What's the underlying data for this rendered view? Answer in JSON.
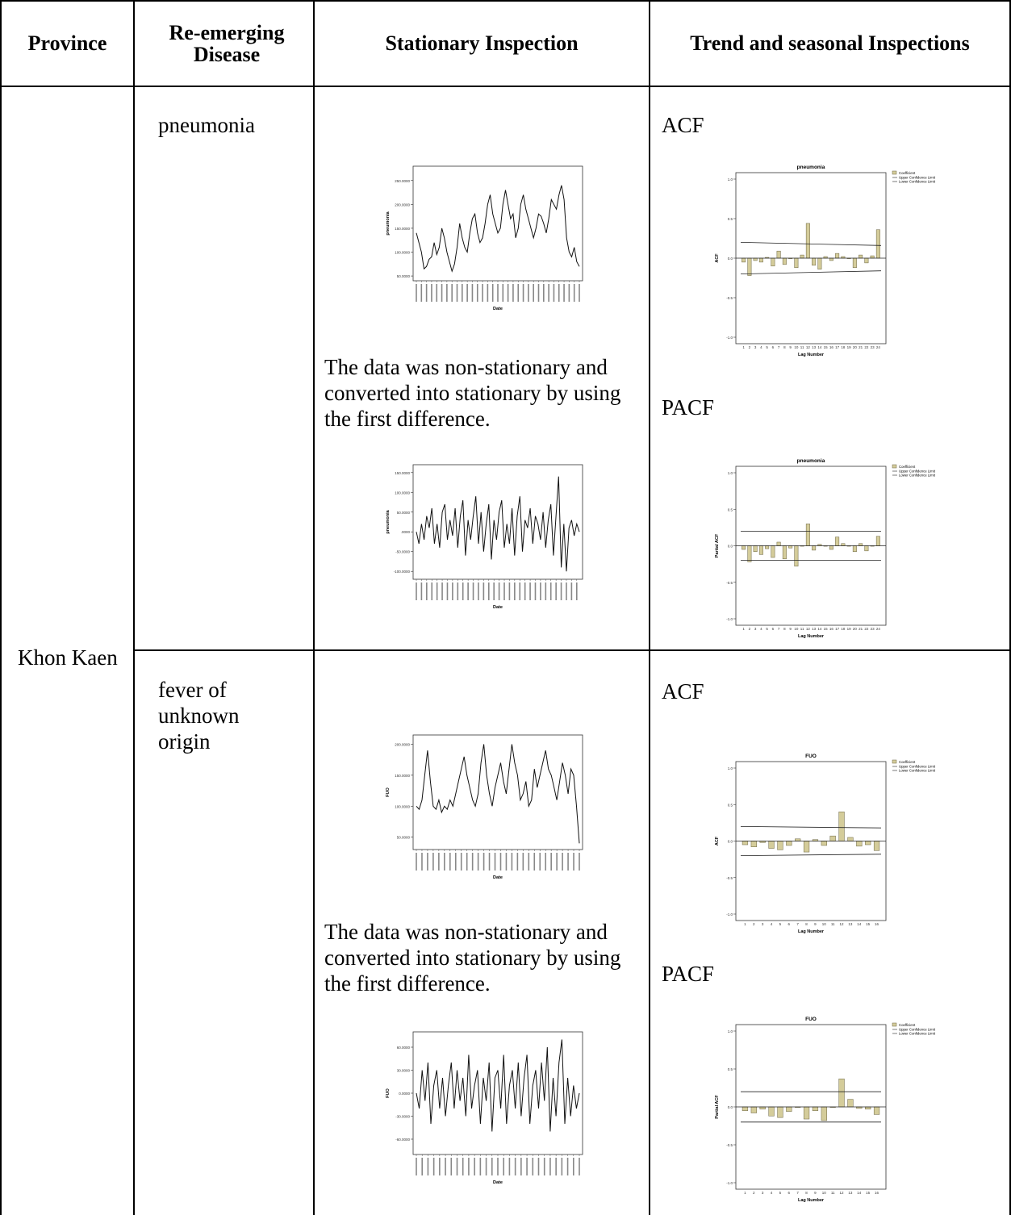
{
  "table": {
    "headers": {
      "province": "Province",
      "disease": "Re-emerging Disease",
      "stationary": "Stationary Inspection",
      "trend": "Trend and seasonal Inspections"
    },
    "province": "Khon Kaen",
    "rows": [
      {
        "disease": "pneumonia",
        "stationary_note": "The data was non-stationary and converted into stationary by using the first difference.",
        "acf_label": "ACF",
        "pacf_label": "PACF"
      },
      {
        "disease": "fever of unknown origin",
        "stationary_note": "The data was non-stationary and converted into stationary by using the first difference.",
        "acf_label": "ACF",
        "pacf_label": "PACF"
      }
    ]
  },
  "chart_data": [
    {
      "id": "pneumonia-series",
      "type": "line",
      "xlabel": "Date",
      "ylabel": "pneumonia",
      "yticks": [
        "250.0000",
        "200.0000",
        "150.0000",
        "100.0000",
        "50.0000"
      ],
      "ylim": [
        40,
        280
      ],
      "values": [
        140,
        120,
        100,
        65,
        70,
        85,
        90,
        120,
        95,
        110,
        150,
        130,
        100,
        80,
        60,
        75,
        110,
        160,
        130,
        110,
        100,
        140,
        170,
        180,
        140,
        120,
        130,
        160,
        200,
        220,
        180,
        160,
        140,
        150,
        200,
        230,
        200,
        170,
        180,
        130,
        150,
        200,
        220,
        190,
        170,
        150,
        130,
        150,
        180,
        175,
        160,
        140,
        170,
        210,
        200,
        190,
        220,
        240,
        210,
        130,
        100,
        90,
        110,
        80,
        70
      ]
    },
    {
      "id": "pneumonia-diff",
      "type": "line",
      "xlabel": "Date",
      "ylabel": "pneumonia",
      "yticks": [
        "150.0000",
        "100.0000",
        "50.0000",
        ".0000",
        "-50.0000",
        "-100.0000"
      ],
      "ylim": [
        -120,
        170
      ],
      "values": [
        0,
        -30,
        20,
        -20,
        40,
        10,
        60,
        -30,
        20,
        -40,
        50,
        70,
        -20,
        30,
        -10,
        60,
        -40,
        40,
        80,
        -60,
        30,
        -20,
        40,
        90,
        -30,
        50,
        -50,
        20,
        70,
        -70,
        30,
        -20,
        50,
        80,
        -40,
        20,
        -30,
        60,
        -60,
        40,
        90,
        -50,
        30,
        10,
        60,
        -30,
        40,
        20,
        -20,
        50,
        -40,
        30,
        70,
        -60,
        40,
        140,
        -90,
        20,
        -100,
        10,
        30,
        -10,
        20,
        0
      ]
    },
    {
      "id": "pneumonia-acf",
      "type": "bar",
      "title": "pneumonia",
      "xlabel": "Lag Number",
      "ylabel": "ACF",
      "legend": [
        "Coefficient",
        "Upper Confidence Limit",
        "Lower Confidence Limit"
      ],
      "yticks": [
        "1.0",
        "0.5",
        "0.0",
        "-0.5",
        "-1.0"
      ],
      "ylim": [
        -1,
        1
      ],
      "categories": [
        "1",
        "2",
        "3",
        "4",
        "5",
        "6",
        "7",
        "8",
        "9",
        "10",
        "11",
        "12",
        "13",
        "14",
        "15",
        "16",
        "17",
        "18",
        "19",
        "20",
        "21",
        "22",
        "23",
        "24"
      ],
      "values": [
        -0.05,
        -0.22,
        -0.03,
        -0.05,
        0.01,
        -0.1,
        0.09,
        -0.08,
        0.0,
        -0.12,
        0.04,
        0.44,
        -0.09,
        -0.14,
        0.02,
        -0.03,
        0.06,
        0.02,
        0.0,
        -0.12,
        0.04,
        -0.06,
        0.03,
        0.36
      ],
      "upper_limit": [
        0.2,
        0.16
      ],
      "lower_limit": [
        -0.2,
        -0.16
      ]
    },
    {
      "id": "pneumonia-pacf",
      "type": "bar",
      "title": "pneumonia",
      "xlabel": "Lag Number",
      "ylabel": "Partial ACF",
      "legend": [
        "Coefficient",
        "Upper Confidence Limit",
        "Lower Confidence Limit"
      ],
      "yticks": [
        "1.0",
        "0.5",
        "0.0",
        "-0.5",
        "-1.0"
      ],
      "ylim": [
        -1,
        1
      ],
      "categories": [
        "1",
        "2",
        "3",
        "4",
        "5",
        "6",
        "7",
        "8",
        "9",
        "10",
        "11",
        "12",
        "13",
        "14",
        "15",
        "16",
        "17",
        "18",
        "19",
        "20",
        "21",
        "22",
        "23",
        "24"
      ],
      "values": [
        -0.05,
        -0.22,
        -0.08,
        -0.12,
        -0.04,
        -0.16,
        0.05,
        -0.18,
        -0.03,
        -0.28,
        0.0,
        0.3,
        -0.06,
        0.02,
        0.0,
        -0.05,
        0.12,
        0.03,
        0.0,
        -0.08,
        0.03,
        -0.07,
        0.0,
        0.13
      ],
      "upper_limit": [
        0.2,
        0.2
      ],
      "lower_limit": [
        -0.2,
        -0.2
      ]
    },
    {
      "id": "fuo-series",
      "type": "line",
      "xlabel": "Date",
      "ylabel": "FUO",
      "yticks": [
        "200.0000",
        "150.0000",
        "100.0000",
        "50.0000"
      ],
      "ylim": [
        30,
        215
      ],
      "values": [
        100,
        95,
        110,
        150,
        190,
        140,
        100,
        95,
        110,
        90,
        100,
        95,
        110,
        100,
        120,
        140,
        160,
        180,
        150,
        130,
        110,
        100,
        120,
        170,
        200,
        150,
        120,
        100,
        130,
        150,
        170,
        140,
        120,
        160,
        200,
        170,
        150,
        110,
        120,
        140,
        100,
        110,
        160,
        130,
        150,
        170,
        190,
        160,
        150,
        130,
        110,
        140,
        170,
        150,
        120,
        160,
        150,
        100,
        40
      ]
    },
    {
      "id": "fuo-diff",
      "type": "line",
      "xlabel": "Date",
      "ylabel": "FUO",
      "yticks": [
        "60.0000",
        "30.0000",
        "0.0000",
        "-30.0000",
        "-60.0000"
      ],
      "ylim": [
        -80,
        80
      ],
      "values": [
        0,
        -20,
        30,
        -10,
        40,
        -40,
        10,
        30,
        -20,
        20,
        -30,
        10,
        40,
        -20,
        30,
        -10,
        20,
        -30,
        50,
        -20,
        10,
        30,
        -40,
        20,
        -10,
        40,
        -50,
        20,
        30,
        -20,
        50,
        -40,
        10,
        30,
        -20,
        40,
        -30,
        20,
        50,
        -40,
        10,
        30,
        -20,
        40,
        -10,
        60,
        -50,
        20,
        -30,
        40,
        70,
        -40,
        20,
        -30,
        10,
        -20,
        0
      ]
    },
    {
      "id": "fuo-acf",
      "type": "bar",
      "title": "FUO",
      "xlabel": "Lag Number",
      "ylabel": "ACF",
      "legend": [
        "Coefficient",
        "Upper Confidence Limit",
        "Lower Confidence Limit"
      ],
      "yticks": [
        "1.0",
        "0.5",
        "0.0",
        "-0.5",
        "-1.0"
      ],
      "ylim": [
        -1,
        1
      ],
      "categories": [
        "1",
        "2",
        "3",
        "4",
        "5",
        "6",
        "7",
        "8",
        "9",
        "10",
        "11",
        "12",
        "13",
        "14",
        "15",
        "16"
      ],
      "values": [
        -0.05,
        -0.08,
        -0.02,
        -0.1,
        -0.12,
        -0.06,
        0.03,
        -0.15,
        0.02,
        -0.06,
        0.07,
        0.4,
        0.05,
        -0.07,
        -0.05,
        -0.13
      ],
      "upper_limit": [
        0.2,
        0.18
      ],
      "lower_limit": [
        -0.2,
        -0.18
      ]
    },
    {
      "id": "fuo-pacf",
      "type": "bar",
      "title": "FUO",
      "xlabel": "Lag Number",
      "ylabel": "Partial ACF",
      "legend": [
        "Coefficient",
        "Upper Confidence Limit",
        "Lower Confidence Limit"
      ],
      "yticks": [
        "1.0",
        "0.5",
        "0.0",
        "-0.5",
        "-1.0"
      ],
      "ylim": [
        -1,
        1
      ],
      "categories": [
        "1",
        "2",
        "3",
        "4",
        "5",
        "6",
        "7",
        "8",
        "9",
        "10",
        "11",
        "12",
        "13",
        "14",
        "15",
        "16"
      ],
      "values": [
        -0.05,
        -0.08,
        -0.03,
        -0.12,
        -0.14,
        -0.06,
        0.0,
        -0.16,
        -0.05,
        -0.18,
        0.0,
        0.37,
        0.1,
        -0.02,
        -0.03,
        -0.1
      ],
      "upper_limit": [
        0.2,
        0.2
      ],
      "lower_limit": [
        -0.2,
        -0.2
      ]
    }
  ]
}
